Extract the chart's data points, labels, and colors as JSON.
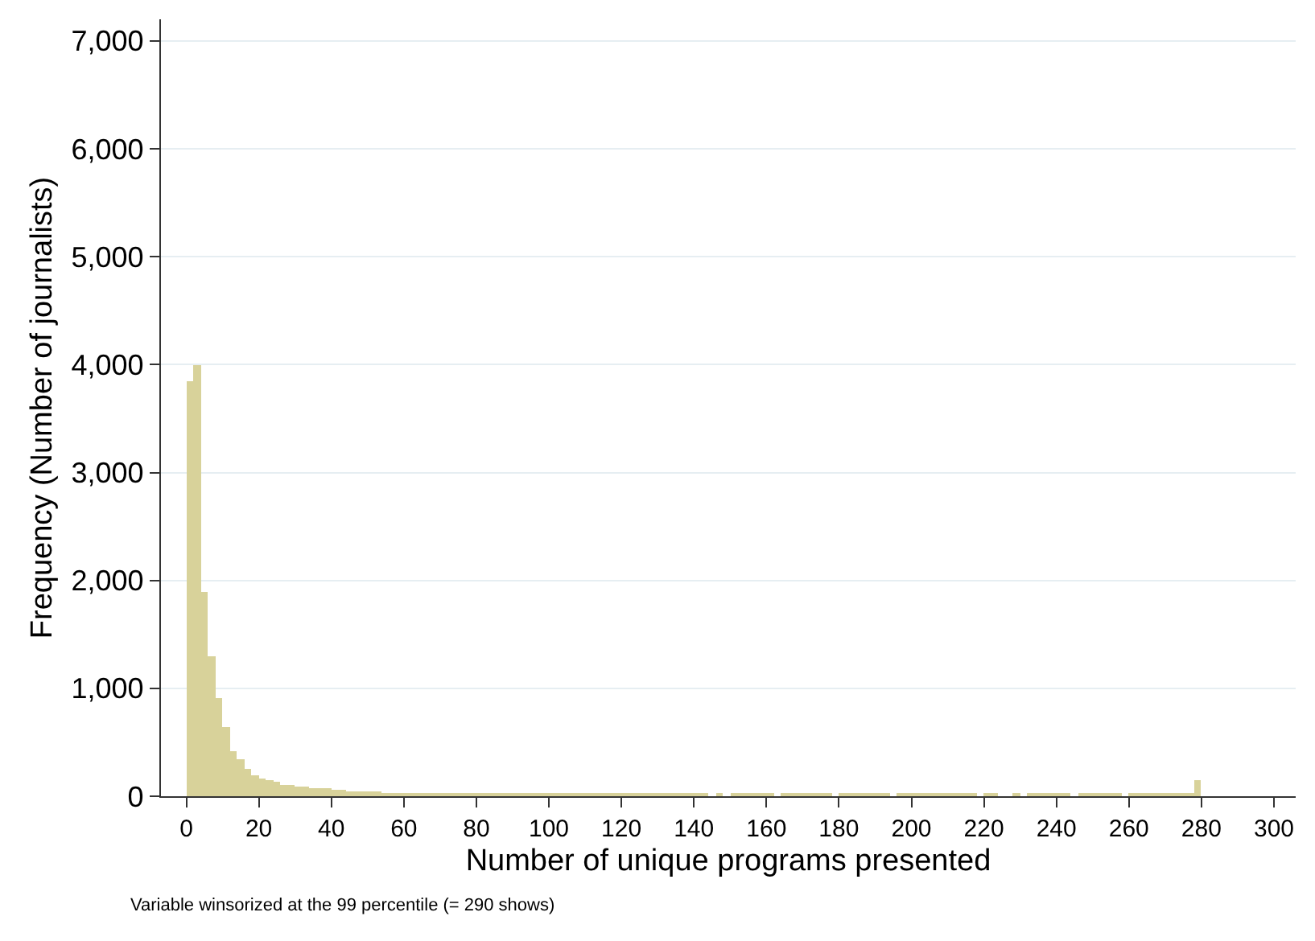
{
  "chart_data": {
    "type": "histogram",
    "xlabel": "Number of unique programs presented",
    "ylabel": "Frequency (Number of journalists)",
    "annotations": [
      "Variable winsorized at the 99 percentile (= 290 shows)"
    ],
    "bins": [
      0,
      2,
      4,
      6,
      8,
      10,
      12,
      14,
      16,
      18,
      20,
      22,
      24,
      26,
      28,
      30,
      32,
      34,
      36,
      38,
      40,
      42,
      44,
      46,
      48,
      50,
      52,
      54,
      56,
      58,
      60,
      62,
      64,
      66,
      68,
      70,
      72,
      74,
      76,
      78,
      80,
      82,
      84,
      86,
      88,
      90,
      92,
      94,
      96,
      98,
      100,
      102,
      104,
      106,
      108,
      110,
      112,
      114,
      116,
      118,
      120,
      122,
      124,
      126,
      128,
      130,
      132,
      134,
      136,
      138,
      140,
      142,
      144,
      146,
      148,
      150,
      152,
      154,
      156,
      158,
      160,
      162,
      164,
      166,
      168,
      170,
      172,
      174,
      176,
      178,
      180,
      182,
      184,
      186,
      188,
      190,
      192,
      194,
      196,
      198,
      200,
      202,
      204,
      206,
      208,
      210,
      212,
      214,
      216,
      218,
      220,
      222,
      224,
      226,
      228,
      230,
      232,
      234,
      236,
      238,
      240,
      242,
      244,
      246,
      248,
      250,
      252,
      254,
      256,
      258,
      260,
      262,
      264,
      266,
      268,
      270,
      272,
      274,
      276,
      278,
      280
    ],
    "values": [
      3840,
      3990,
      1890,
      1300,
      910,
      640,
      420,
      340,
      250,
      190,
      160,
      150,
      130,
      110,
      100,
      90,
      90,
      70,
      80,
      70,
      60,
      60,
      50,
      50,
      50,
      40,
      40,
      30,
      30,
      30,
      20,
      20,
      20,
      20,
      20,
      20,
      20,
      20,
      20,
      20,
      20,
      20,
      20,
      20,
      20,
      20,
      20,
      20,
      20,
      20,
      20,
      20,
      20,
      20,
      20,
      20,
      20,
      20,
      20,
      20,
      20,
      20,
      20,
      20,
      20,
      20,
      20,
      20,
      20,
      20,
      20,
      20,
      0,
      20,
      0,
      20,
      20,
      20,
      20,
      20,
      20,
      0,
      20,
      20,
      20,
      20,
      20,
      20,
      20,
      0,
      20,
      20,
      20,
      20,
      20,
      20,
      20,
      0,
      20,
      20,
      20,
      20,
      20,
      20,
      20,
      20,
      20,
      20,
      20,
      0,
      20,
      20,
      0,
      0,
      20,
      0,
      20,
      20,
      20,
      20,
      20,
      20,
      0,
      20,
      20,
      20,
      20,
      20,
      20,
      0,
      20,
      20,
      20,
      20,
      20,
      20,
      20,
      20,
      20,
      150
    ],
    "color": "#d8d29a",
    "xlim": [
      -7,
      306
    ],
    "xticks": [
      0,
      20,
      40,
      60,
      80,
      100,
      120,
      140,
      160,
      180,
      200,
      220,
      240,
      260,
      280,
      300
    ],
    "ylim": [
      0,
      7200
    ],
    "yticks": [
      {
        "value": 0,
        "label": "0"
      },
      {
        "value": 1000,
        "label": "1,000"
      },
      {
        "value": 2000,
        "label": "2,000"
      },
      {
        "value": 3000,
        "label": "3,000"
      },
      {
        "value": 4000,
        "label": "4,000"
      },
      {
        "value": 5000,
        "label": "5,000"
      },
      {
        "value": 6000,
        "label": "6,000"
      },
      {
        "value": 7000,
        "label": "7,000"
      }
    ],
    "grid": "y"
  }
}
